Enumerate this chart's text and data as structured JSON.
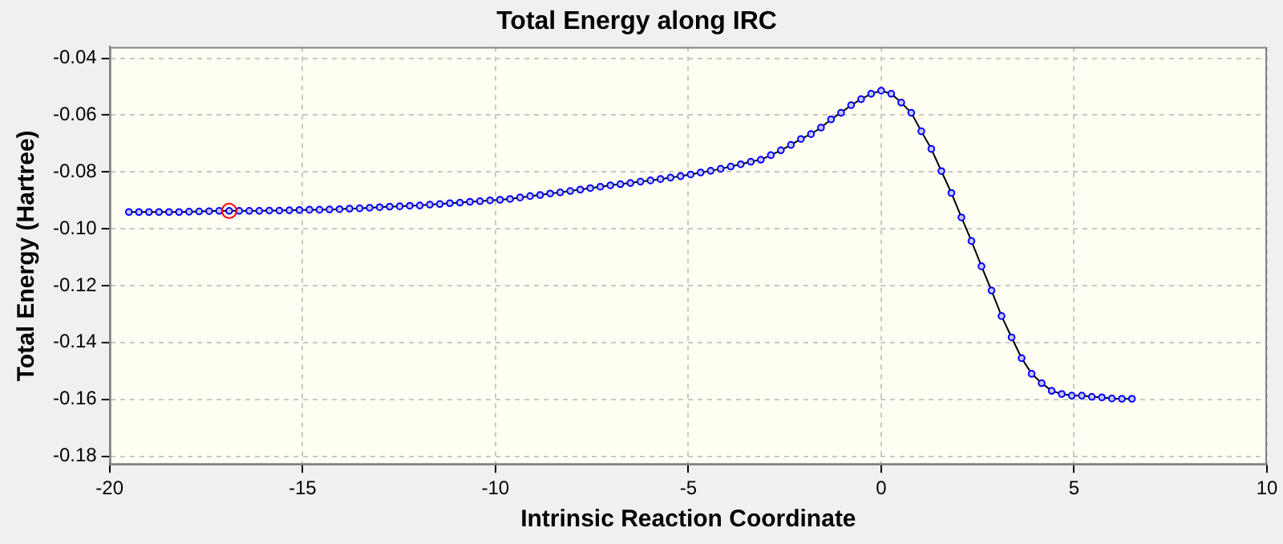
{
  "chart_data": {
    "type": "line",
    "title": "Total Energy along IRC",
    "xlabel": "Intrinsic Reaction Coordinate",
    "ylabel": "Total Energy (Hartree)",
    "xlim": [
      -20,
      10
    ],
    "xticks": [
      -20,
      -15,
      -10,
      -5,
      0,
      5,
      10
    ],
    "ylim": [
      -0.183,
      -0.036
    ],
    "yticks": [
      -0.04,
      -0.06,
      -0.08,
      {
        "value": -0.1,
        "label": "-0.10"
      },
      -0.12,
      -0.14,
      -0.16,
      -0.18
    ],
    "grid": true,
    "legend": false,
    "marker": "circle",
    "line_style": "solid",
    "series": [
      {
        "color": "#0000ff",
        "x": [
          -19.5,
          -19.24,
          -18.98,
          -18.72,
          -18.46,
          -18.2,
          -17.94,
          -17.68,
          -17.42,
          -17.16,
          -16.9,
          -16.64,
          -16.38,
          -16.12,
          -15.86,
          -15.6,
          -15.34,
          -15.08,
          -14.82,
          -14.56,
          -14.3,
          -14.04,
          -13.78,
          -13.52,
          -13.26,
          -13.0,
          -12.74,
          -12.48,
          -12.22,
          -11.96,
          -11.7,
          -11.44,
          -11.18,
          -10.92,
          -10.66,
          -10.4,
          -10.14,
          -9.88,
          -9.62,
          -9.36,
          -9.1,
          -8.84,
          -8.58,
          -8.32,
          -8.06,
          -7.8,
          -7.54,
          -7.28,
          -7.02,
          -6.76,
          -6.5,
          -6.24,
          -5.98,
          -5.72,
          -5.46,
          -5.2,
          -4.94,
          -4.68,
          -4.42,
          -4.16,
          -3.9,
          -3.64,
          -3.38,
          -3.12,
          -2.86,
          -2.6,
          -2.34,
          -2.08,
          -1.82,
          -1.56,
          -1.3,
          -1.04,
          -0.78,
          -0.52,
          -0.26,
          0,
          0.26,
          0.52,
          0.78,
          1.04,
          1.3,
          1.56,
          1.82,
          2.08,
          2.34,
          2.6,
          2.86,
          3.12,
          3.38,
          3.64,
          3.9,
          4.16,
          4.42,
          4.68,
          4.94,
          5.2,
          5.46,
          5.72,
          5.98,
          6.24,
          6.5
        ],
        "values": [
          -0.0941,
          -0.0941,
          -0.0941,
          -0.0941,
          -0.0941,
          -0.0941,
          -0.094,
          -0.0939,
          -0.0938,
          -0.0937,
          -0.0937,
          -0.0937,
          -0.0937,
          -0.0937,
          -0.0936,
          -0.0936,
          -0.0935,
          -0.0934,
          -0.0933,
          -0.0933,
          -0.0932,
          -0.0931,
          -0.0929,
          -0.0928,
          -0.0926,
          -0.0924,
          -0.0922,
          -0.0921,
          -0.0919,
          -0.0918,
          -0.0915,
          -0.0913,
          -0.091,
          -0.0908,
          -0.0905,
          -0.0903,
          -0.09,
          -0.0898,
          -0.0895,
          -0.089,
          -0.0885,
          -0.0881,
          -0.0876,
          -0.0872,
          -0.0867,
          -0.0862,
          -0.0857,
          -0.0852,
          -0.0847,
          -0.0843,
          -0.0839,
          -0.0834,
          -0.083,
          -0.0825,
          -0.082,
          -0.0815,
          -0.0809,
          -0.0802,
          -0.0796,
          -0.0789,
          -0.0781,
          -0.0773,
          -0.0764,
          -0.0757,
          -0.0741,
          -0.0724,
          -0.0705,
          -0.0684,
          -0.0667,
          -0.0644,
          -0.0615,
          -0.0592,
          -0.0565,
          -0.0544,
          -0.0525,
          -0.0514,
          -0.0525,
          -0.0556,
          -0.0592,
          -0.0657,
          -0.0719,
          -0.0797,
          -0.0874,
          -0.096,
          -0.1043,
          -0.1132,
          -0.1217,
          -0.1307,
          -0.1382,
          -0.1455,
          -0.151,
          -0.1543,
          -0.157,
          -0.1581,
          -0.1587,
          -0.1587,
          -0.1591,
          -0.1593,
          -0.1597,
          -0.1598,
          -0.1598
        ]
      },
      {
        "type": "scatter",
        "color": "#ff0000",
        "x": [
          -16.9
        ],
        "values": [
          -0.0937
        ]
      }
    ]
  }
}
